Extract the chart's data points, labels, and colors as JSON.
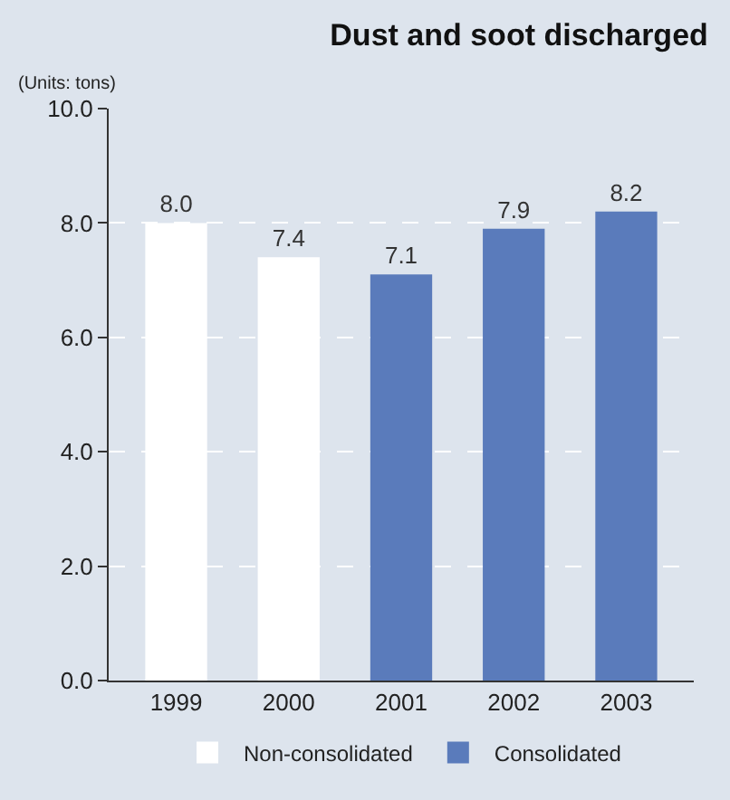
{
  "chart_data": {
    "type": "bar",
    "title": "Dust and soot discharged",
    "ylabel": "(Units: tons)",
    "categories": [
      "1999",
      "2000",
      "2001",
      "2002",
      "2003"
    ],
    "series": [
      {
        "name": "Non-consolidated",
        "color": "#ffffff",
        "values": [
          8.0,
          7.4,
          null,
          null,
          null
        ],
        "value_labels": [
          "8.0",
          "7.4",
          null,
          null,
          null
        ]
      },
      {
        "name": "Consolidated",
        "color": "#5a7bbb",
        "values": [
          null,
          null,
          7.1,
          7.9,
          8.2
        ],
        "value_labels": [
          null,
          null,
          "7.1",
          "7.9",
          "8.2"
        ]
      }
    ],
    "ylim": [
      0,
      10
    ],
    "yticks": [
      {
        "value": 0,
        "label": "0.0"
      },
      {
        "value": 2,
        "label": "2.0"
      },
      {
        "value": 4,
        "label": "4.0"
      },
      {
        "value": 6,
        "label": "6.0"
      },
      {
        "value": 8,
        "label": "8.0"
      },
      {
        "value": 10,
        "label": "10.0"
      }
    ],
    "grid": "y",
    "legend": "bottom"
  }
}
